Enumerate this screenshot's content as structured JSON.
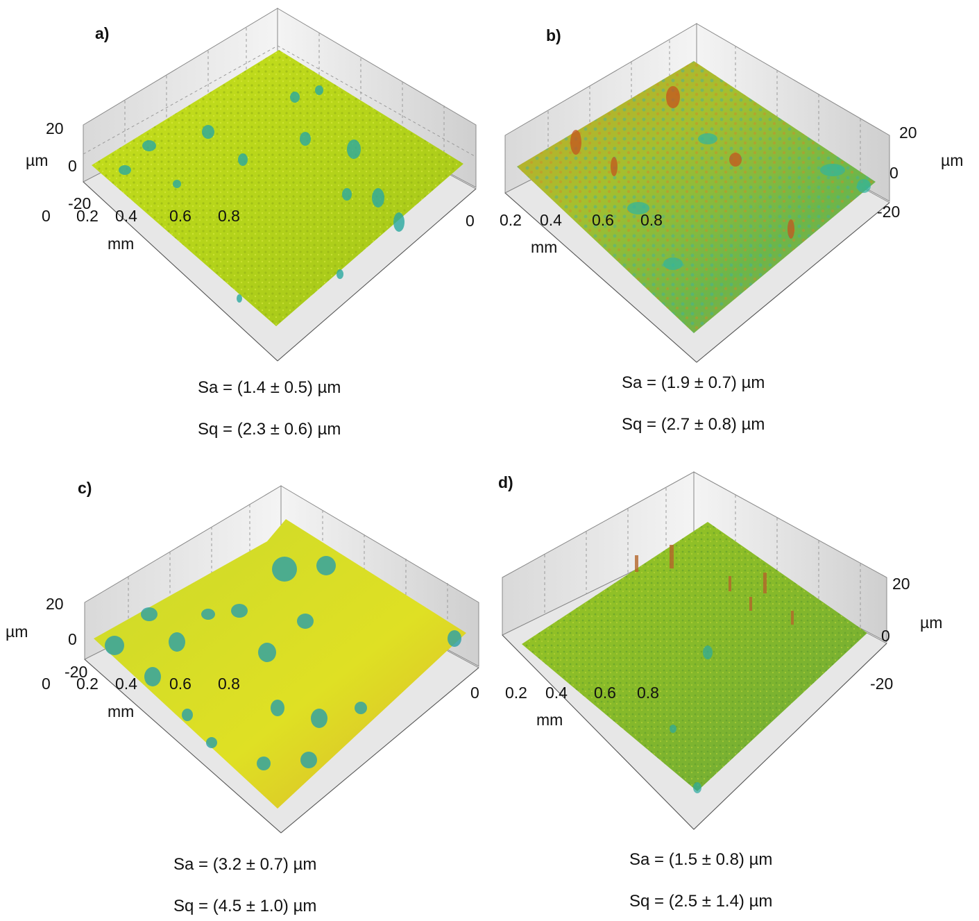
{
  "panels": [
    {
      "label": "a)",
      "z_unit": "µm",
      "z_ticks": [
        "20",
        "0",
        "-20"
      ],
      "xy_unit": "mm",
      "x_ticks": [
        "0",
        "0.2",
        "0.4",
        "0.6",
        "0.8"
      ],
      "y_tick": "0",
      "sa": "Sa = (1.4 ± 0.5) µm",
      "sq": "Sq = (2.3 ± 0.6) µm",
      "surface_color": "#b8d81c"
    },
    {
      "label": "b)",
      "z_unit": "µm",
      "z_ticks": [
        "20",
        "0",
        "-20"
      ],
      "xy_unit": "mm",
      "x_ticks": [
        "0.2",
        "0.4",
        "0.6",
        "0.8"
      ],
      "sa": "Sa = (1.9 ± 0.7) µm",
      "sq": "Sq = (2.7 ± 0.8) µm",
      "surface_color": "#a9b530"
    },
    {
      "label": "c)",
      "z_unit": "µm",
      "z_ticks": [
        "20",
        "0",
        "-20"
      ],
      "xy_unit": "mm",
      "x_ticks": [
        "0",
        "0.2",
        "0.4",
        "0.6",
        "0.8"
      ],
      "y_tick": "0",
      "sa": "Sa = (3.2 ± 0.7) µm",
      "sq": "Sq = (4.5 ± 1.0) µm",
      "surface_color": "#d3dc1f"
    },
    {
      "label": "d)",
      "z_unit": "µm",
      "z_ticks": [
        "20",
        "0",
        "-20"
      ],
      "xy_unit": "mm",
      "x_ticks": [
        "0.2",
        "0.4",
        "0.6",
        "0.8"
      ],
      "sa": "Sa = (1.5 ± 0.8) µm",
      "sq": "Sq = (2.5 ± 1.4) µm",
      "surface_color": "#8fbe22"
    }
  ]
}
